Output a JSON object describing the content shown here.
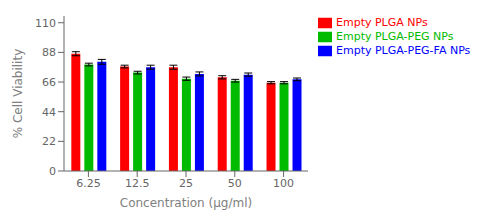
{
  "chart_data": {
    "type": "bar",
    "categories": [
      "6.25",
      "12.5",
      "25",
      "50",
      "100"
    ],
    "series": [
      {
        "name": "Empty PLGA NPs",
        "color": "#FF0000",
        "values": [
          87.0,
          77.5,
          77.0,
          69.5,
          65.5
        ],
        "errors": [
          1.5,
          1.0,
          1.5,
          1.2,
          0.8
        ]
      },
      {
        "name": "Empty PLGA-PEG NPs",
        "color": "#00BB00",
        "values": [
          79.0,
          73.0,
          68.5,
          67.0,
          65.5
        ],
        "errors": [
          1.0,
          1.0,
          1.2,
          1.0,
          0.8
        ]
      },
      {
        "name": "Empty PLGA-PEG-FA NPs",
        "color": "#0000FF",
        "values": [
          81.0,
          77.0,
          72.0,
          71.5,
          68.0
        ],
        "errors": [
          1.8,
          1.5,
          1.5,
          1.2,
          1.0
        ]
      }
    ],
    "xlabel": "Concentration (µg/ml)",
    "ylabel": "% Cell Viability",
    "ylim": [
      0,
      115
    ],
    "yticks": [
      0,
      22,
      44,
      66,
      88,
      110
    ],
    "grid": false,
    "legend": "right"
  }
}
